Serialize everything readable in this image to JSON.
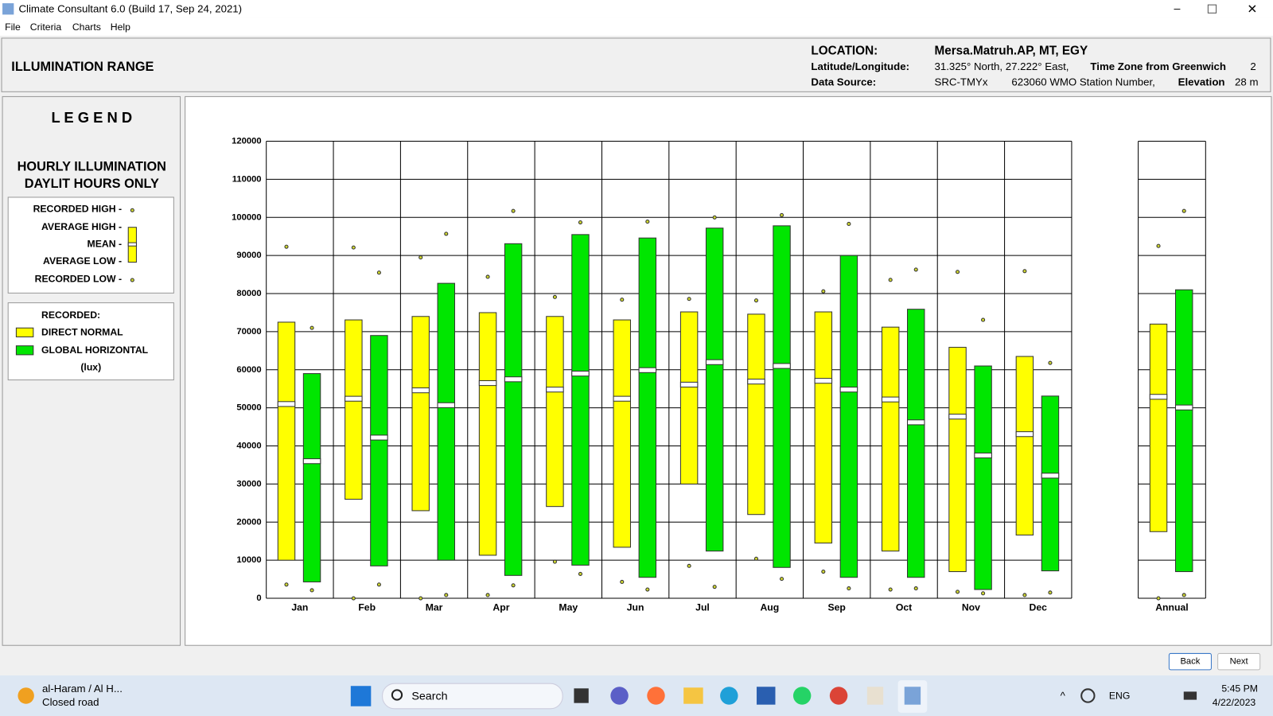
{
  "window": {
    "title": "Climate Consultant 6.0 (Build 17, Sep 24, 2021)",
    "menu": [
      "File",
      "Criteria",
      "Charts",
      "Help"
    ]
  },
  "header": {
    "title": "ILLUMINATION RANGE",
    "location_label": "LOCATION:",
    "location": "Mersa.Matruh.AP, MT, EGY",
    "latlon_label": "Latitude/Longitude:",
    "latlon": "31.325° North, 27.222° East,",
    "tz_label": "Time Zone from Greenwich",
    "tz": "2",
    "source_label": "Data Source:",
    "source": "SRC-TMYx",
    "station": "623060 WMO Station Number,",
    "elev_label": "Elevation",
    "elev": "28 m"
  },
  "legend": {
    "title": "L E G E N D",
    "subtitle1": "HOURLY ILLUMINATION",
    "subtitle2": "DAYLIT HOURS ONLY",
    "recorded_high": "RECORDED HIGH -",
    "average_high": "AVERAGE HIGH -",
    "mean": "MEAN -",
    "average_low": "AVERAGE LOW -",
    "recorded_low": "RECORDED LOW -",
    "recorded": "RECORDED:",
    "unit": "(lux)"
  },
  "chart_data": {
    "type": "range",
    "categories": [
      "Jan",
      "Feb",
      "Mar",
      "Apr",
      "May",
      "Jun",
      "Jul",
      "Aug",
      "Sep",
      "Oct",
      "Nov",
      "Dec",
      "Annual"
    ],
    "ylim": [
      0,
      120000
    ],
    "yticks": [
      0,
      10000,
      20000,
      30000,
      40000,
      50000,
      60000,
      70000,
      80000,
      90000,
      100000,
      110000,
      120000
    ],
    "grid": true,
    "series": [
      {
        "name": "DIRECT NORMAL",
        "color": "#ffff00",
        "recorded_high": [
          92300,
          92100,
          89500,
          84400,
          79100,
          78400,
          78600,
          78200,
          80600,
          83600,
          85700,
          85900,
          92500
        ],
        "average_high": [
          72500,
          73100,
          74000,
          75000,
          74000,
          73100,
          75200,
          74600,
          75200,
          71200,
          65900,
          63500,
          72000
        ],
        "mean": [
          51000,
          52400,
          54600,
          56500,
          54800,
          52400,
          56100,
          56900,
          57100,
          52200,
          47700,
          43100,
          52900
        ],
        "average_low": [
          10000,
          26000,
          23000,
          11300,
          24100,
          13400,
          30000,
          22000,
          14500,
          12400,
          7000,
          16600,
          17500
        ],
        "recorded_low": [
          3600,
          0,
          0,
          850,
          9600,
          4300,
          8500,
          10400,
          7000,
          2300,
          1700,
          850,
          0
        ]
      },
      {
        "name": "GLOBAL HORIZONTAL",
        "color": "#00e600",
        "recorded_high": [
          71000,
          85500,
          95700,
          101700,
          98700,
          98900,
          100000,
          100600,
          98300,
          86300,
          73100,
          61800,
          101700
        ],
        "average_high": [
          59000,
          69000,
          82700,
          93100,
          95500,
          94600,
          97200,
          97800,
          90000,
          75900,
          61000,
          53100,
          81000
        ],
        "mean": [
          36000,
          42200,
          50700,
          57500,
          59000,
          59900,
          62000,
          61000,
          54800,
          46200,
          37500,
          32200,
          50100
        ],
        "average_low": [
          4300,
          8500,
          10000,
          6000,
          8700,
          5500,
          12400,
          8100,
          5500,
          5500,
          2300,
          7200,
          7000
        ],
        "recorded_low": [
          2100,
          3600,
          850,
          3400,
          6400,
          2300,
          3000,
          5100,
          2600,
          2600,
          1300,
          1500,
          850
        ]
      }
    ]
  },
  "buttons": {
    "back": "Back",
    "next": "Next"
  },
  "taskbar": {
    "weather_title": "al-Haram / Al H...",
    "weather_sub": "Closed road",
    "search": "Search",
    "lang": "ENG",
    "time": "5:45 PM",
    "date": "4/22/2023"
  }
}
